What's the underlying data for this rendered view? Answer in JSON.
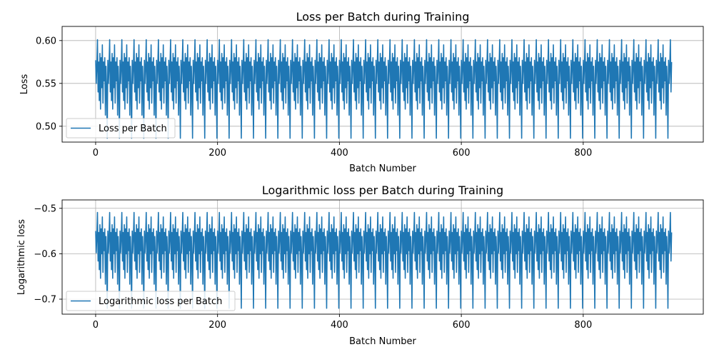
{
  "chart_data": [
    {
      "type": "line",
      "title": "Loss per Batch during Training",
      "xlabel": "Batch Number",
      "ylabel": "Loss",
      "xlim": [
        -55,
        997
      ],
      "ylim": [
        0.4815,
        0.6165
      ],
      "xticks": [
        0,
        200,
        400,
        600,
        800
      ],
      "xtick_labels": [
        "0",
        "200",
        "400",
        "600",
        "800"
      ],
      "yticks": [
        0.5,
        0.55,
        0.6
      ],
      "ytick_labels": [
        "0.50",
        "0.55",
        "0.60"
      ],
      "grid": true,
      "legend_position": "bottom-left",
      "series": [
        {
          "name": "Loss per Batch",
          "color": "#1f77b4",
          "x_start": 0,
          "x_end": 945,
          "period": 20,
          "shape": [
            0.577,
            0.55,
            0.57,
            0.601,
            0.54,
            0.575,
            0.53,
            0.585,
            0.52,
            0.58,
            0.545,
            0.595,
            0.527,
            0.575,
            0.553,
            0.58,
            0.513,
            0.57,
            0.545,
            0.486
          ]
        }
      ]
    },
    {
      "type": "line",
      "title": "Logarithmic loss per Batch during Training",
      "xlabel": "Batch Number",
      "ylabel": "Logarithmic loss",
      "xlim": [
        -55,
        997
      ],
      "ylim": [
        -0.733,
        -0.4815
      ],
      "xticks": [
        0,
        200,
        400,
        600,
        800
      ],
      "xtick_labels": [
        "0",
        "200",
        "400",
        "600",
        "800"
      ],
      "yticks": [
        -0.7,
        -0.6,
        -0.5
      ],
      "ytick_labels": [
        "−0.7",
        "−0.6",
        "−0.5"
      ],
      "grid": true,
      "legend_position": "bottom-left",
      "series": [
        {
          "name": "Logarithmic loss per Batch",
          "color": "#1f77b4",
          "x_start": 0,
          "x_end": 945,
          "period": 20,
          "shape": [
            -0.55,
            -0.598,
            -0.562,
            -0.509,
            -0.616,
            -0.553,
            -0.635,
            -0.536,
            -0.654,
            -0.545,
            -0.6,
            -0.519,
            -0.641,
            -0.553,
            -0.593,
            -0.545,
            -0.667,
            -0.562,
            -0.606,
            -0.72
          ]
        }
      ]
    }
  ]
}
